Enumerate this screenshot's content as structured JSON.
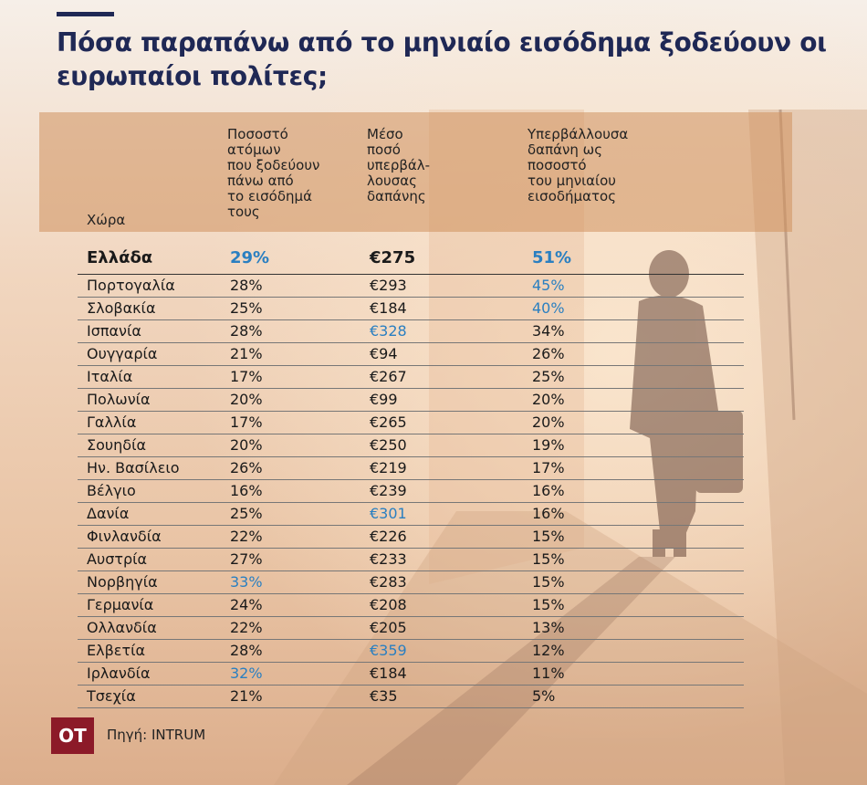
{
  "title": "Πόσα παραπάνω από το μηνιαίο εισόδημα ξοδεύουν οι ευρωπαίοι πολίτες;",
  "source": "Πηγή: INTRUM",
  "logo_text": "OT",
  "colors": {
    "title": "#1f2855",
    "accent_blue": "#2a7fc1",
    "header_band": "#d0925f",
    "logo": "#8c1a28"
  },
  "chart_data": {
    "type": "table",
    "title": "Πόσα παραπάνω από το μηνιαίο εισόδημα ξοδεύουν οι ευρωπαίοι πολίτες;",
    "columns": [
      "Χώρα",
      "Ποσοστό\nατόμων\nπου ξοδεύουν\nπάνω από\nτο εισόδημά\nτους",
      "Μέσο\nποσό\nυπερβάλ-\nλουσας\nδαπάνης",
      "Υπερβάλλουσα\nδαπάνη ως\nποσοστό\nτου μηνιαίου\nεισοδήματος"
    ],
    "rows": [
      [
        "Ελλάδα",
        "29%",
        "€275",
        "51%"
      ],
      [
        "Πορτογαλία",
        "28%",
        "€293",
        "45%"
      ],
      [
        "Σλοβακία",
        "25%",
        "€184",
        "40%"
      ],
      [
        "Ισπανία",
        "28%",
        "€328",
        "34%"
      ],
      [
        "Ουγγαρία",
        "21%",
        "€94",
        "26%"
      ],
      [
        "Ιταλία",
        "17%",
        "€267",
        "25%"
      ],
      [
        "Πολωνία",
        "20%",
        "€99",
        "20%"
      ],
      [
        "Γαλλία",
        "17%",
        "€265",
        "20%"
      ],
      [
        "Σουηδία",
        "20%",
        "€250",
        "19%"
      ],
      [
        "Ην. Βασίλειο",
        "26%",
        "€219",
        "17%"
      ],
      [
        "Βέλγιο",
        "16%",
        "€239",
        "16%"
      ],
      [
        "Δανία",
        "25%",
        "€301",
        "16%"
      ],
      [
        "Φινλανδία",
        "22%",
        "€226",
        "15%"
      ],
      [
        "Αυστρία",
        "27%",
        "€233",
        "15%"
      ],
      [
        "Νορβηγία",
        "33%",
        "€283",
        "15%"
      ],
      [
        "Γερμανία",
        "24%",
        "€208",
        "15%"
      ],
      [
        "Ολλανδία",
        "22%",
        "€205",
        "13%"
      ],
      [
        "Ελβετία",
        "28%",
        "€359",
        "12%"
      ],
      [
        "Ιρλανδία",
        "32%",
        "€184",
        "11%"
      ],
      [
        "Τσεχία",
        "21%",
        "€35",
        "5%"
      ]
    ],
    "highlighted_row": 0,
    "blue_cells": [
      [
        0,
        1
      ],
      [
        0,
        3
      ],
      [
        1,
        3
      ],
      [
        2,
        3
      ],
      [
        3,
        2
      ],
      [
        11,
        2
      ],
      [
        14,
        1
      ],
      [
        17,
        2
      ],
      [
        18,
        1
      ]
    ]
  }
}
